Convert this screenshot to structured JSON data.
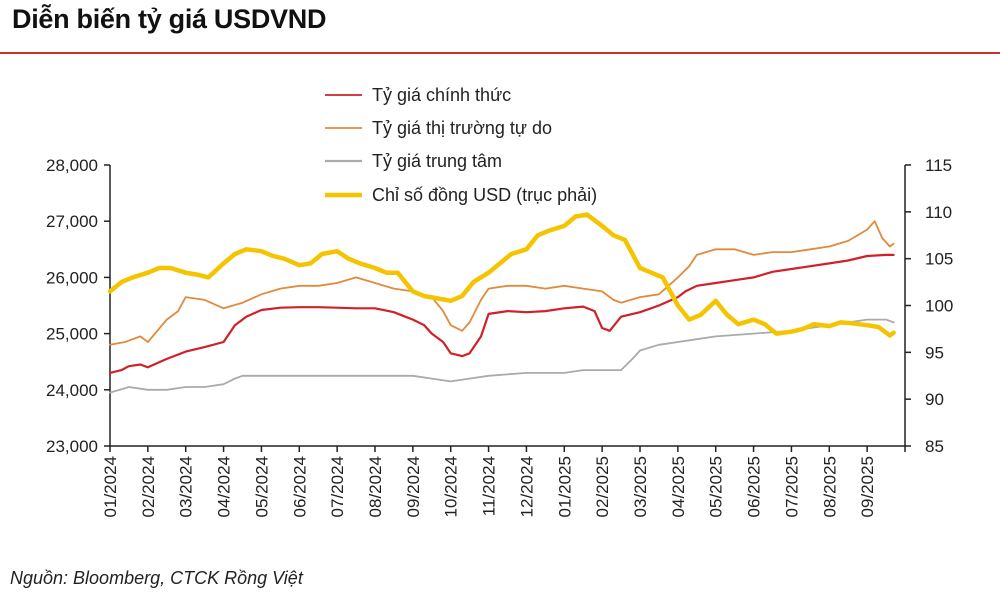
{
  "title": "Diễn biến tỷ giá USDVND",
  "source": "Nguồn: Bloomberg, CTCK Rồng Việt",
  "colors": {
    "official": "#d0202a",
    "free_market": "#e08a3c",
    "central": "#aaaaaa",
    "usd_index": "#f5c400",
    "rule": "#d0302a"
  },
  "chart_data": {
    "type": "line",
    "title": "Diễn biến tỷ giá USDVND",
    "x_labels": [
      "01/2024",
      "02/2024",
      "03/2024",
      "04/2024",
      "05/2024",
      "06/2024",
      "07/2024",
      "08/2024",
      "09/2024",
      "10/2024",
      "11/2024",
      "12/2024",
      "01/2025",
      "02/2025",
      "03/2025",
      "04/2025",
      "05/2025",
      "06/2025",
      "07/2025",
      "08/2025",
      "09/2025"
    ],
    "x_range": [
      "01/2024",
      "10/2025"
    ],
    "y_left": {
      "min": 23000,
      "max": 28000,
      "ticks": [
        23000,
        24000,
        25000,
        26000,
        27000,
        28000
      ],
      "tick_labels": [
        "23,000",
        "24,000",
        "25,000",
        "26,000",
        "27,000",
        "28,000"
      ]
    },
    "y_right": {
      "min": 85,
      "max": 115,
      "ticks": [
        85,
        90,
        95,
        100,
        105,
        110,
        115
      ]
    },
    "legend_position": "top-center",
    "grid": false,
    "series": [
      {
        "name": "Tỷ giá chính thức",
        "axis": "left",
        "color": "#d0202a",
        "x": [
          0,
          0.3,
          0.5,
          0.8,
          1,
          1.5,
          2,
          2.5,
          3,
          3.3,
          3.6,
          4,
          4.5,
          5,
          5.5,
          6,
          6.5,
          7,
          7.5,
          7.8,
          8,
          8.3,
          8.5,
          8.8,
          9,
          9.3,
          9.5,
          9.8,
          10,
          10.5,
          11,
          11.5,
          12,
          12.5,
          12.8,
          13,
          13.2,
          13.5,
          14,
          14.5,
          15,
          15.2,
          15.5,
          16,
          16.5,
          17,
          17.5,
          18,
          18.5,
          19,
          19.5,
          20,
          20.5,
          20.7
        ],
        "y": [
          24300,
          24350,
          24420,
          24450,
          24400,
          24550,
          24680,
          24760,
          24850,
          25150,
          25300,
          25420,
          25460,
          25470,
          25470,
          25460,
          25450,
          25450,
          25380,
          25300,
          25250,
          25150,
          25000,
          24850,
          24650,
          24600,
          24650,
          24950,
          25350,
          25400,
          25380,
          25400,
          25450,
          25480,
          25400,
          25100,
          25050,
          25300,
          25380,
          25500,
          25650,
          25750,
          25850,
          25900,
          25950,
          26000,
          26100,
          26150,
          26200,
          26250,
          26300,
          26380,
          26400,
          26400
        ]
      },
      {
        "name": "Tỷ giá thị trường tự do",
        "axis": "left",
        "color": "#e08a3c",
        "x": [
          0,
          0.4,
          0.8,
          1,
          1.5,
          1.8,
          2,
          2.5,
          3,
          3.5,
          4,
          4.5,
          5,
          5.5,
          6,
          6.5,
          7,
          7.5,
          8,
          8.5,
          8.8,
          9,
          9.3,
          9.5,
          9.8,
          10,
          10.5,
          11,
          11.5,
          12,
          12.5,
          13,
          13.3,
          13.5,
          14,
          14.5,
          15,
          15.3,
          15.5,
          16,
          16.5,
          17,
          17.5,
          18,
          18.5,
          19,
          19.5,
          20,
          20.2,
          20.4,
          20.6,
          20.7
        ],
        "y": [
          24800,
          24850,
          24950,
          24850,
          25250,
          25400,
          25650,
          25600,
          25450,
          25550,
          25700,
          25800,
          25850,
          25850,
          25900,
          26000,
          25900,
          25800,
          25750,
          25650,
          25400,
          25150,
          25050,
          25200,
          25600,
          25800,
          25850,
          25850,
          25800,
          25850,
          25800,
          25750,
          25600,
          25550,
          25650,
          25700,
          26000,
          26200,
          26400,
          26500,
          26500,
          26400,
          26450,
          26450,
          26500,
          26550,
          26650,
          26850,
          27000,
          26700,
          26550,
          26600
        ]
      },
      {
        "name": "Tỷ giá trung tâm",
        "axis": "left",
        "color": "#aaaaaa",
        "x": [
          0,
          0.5,
          1,
          1.5,
          2,
          2.5,
          3,
          3.3,
          3.5,
          4,
          5,
          6,
          7,
          8,
          8.5,
          9,
          9.5,
          10,
          11,
          12,
          12.5,
          13,
          13.5,
          13.8,
          14,
          14.5,
          15,
          15.5,
          16,
          17,
          18,
          19,
          19.5,
          20,
          20.5,
          20.7
        ],
        "y": [
          23950,
          24050,
          24000,
          24000,
          24050,
          24050,
          24100,
          24200,
          24250,
          24250,
          24250,
          24250,
          24250,
          24250,
          24200,
          24150,
          24200,
          24250,
          24300,
          24300,
          24350,
          24350,
          24350,
          24550,
          24700,
          24800,
          24850,
          24900,
          24950,
          25000,
          25050,
          25150,
          25200,
          25250,
          25250,
          25200
        ]
      },
      {
        "name": "Chỉ số đồng USD (trục phải)",
        "axis": "right",
        "color": "#f5c400",
        "x": [
          0,
          0.3,
          0.6,
          1,
          1.3,
          1.6,
          2,
          2.3,
          2.6,
          3,
          3.3,
          3.6,
          4,
          4.3,
          4.6,
          5,
          5.3,
          5.6,
          6,
          6.3,
          6.6,
          7,
          7.3,
          7.6,
          8,
          8.3,
          8.6,
          9,
          9.3,
          9.6,
          10,
          10.3,
          10.6,
          11,
          11.3,
          11.6,
          12,
          12.3,
          12.6,
          13,
          13.3,
          13.6,
          14,
          14.3,
          14.6,
          15,
          15.3,
          15.6,
          16,
          16.3,
          16.6,
          17,
          17.3,
          17.6,
          18,
          18.3,
          18.6,
          19,
          19.3,
          19.6,
          20,
          20.3,
          20.6,
          20.7
        ],
        "y": [
          101.5,
          102.5,
          103,
          103.5,
          104,
          104,
          103.5,
          103.3,
          103,
          104.5,
          105.5,
          106,
          105.8,
          105.3,
          105,
          104.3,
          104.5,
          105.5,
          105.8,
          105,
          104.5,
          104,
          103.5,
          103.5,
          101.5,
          101,
          100.8,
          100.5,
          101,
          102.5,
          103.5,
          104.5,
          105.5,
          106,
          107.5,
          108,
          108.5,
          109.5,
          109.7,
          108.5,
          107.5,
          107,
          104,
          103.5,
          103,
          100,
          98.5,
          99,
          100.5,
          99,
          98,
          98.5,
          98,
          97,
          97.2,
          97.5,
          98,
          97.8,
          98.2,
          98.1,
          97.9,
          97.7,
          96.8,
          97.1
        ]
      }
    ]
  }
}
